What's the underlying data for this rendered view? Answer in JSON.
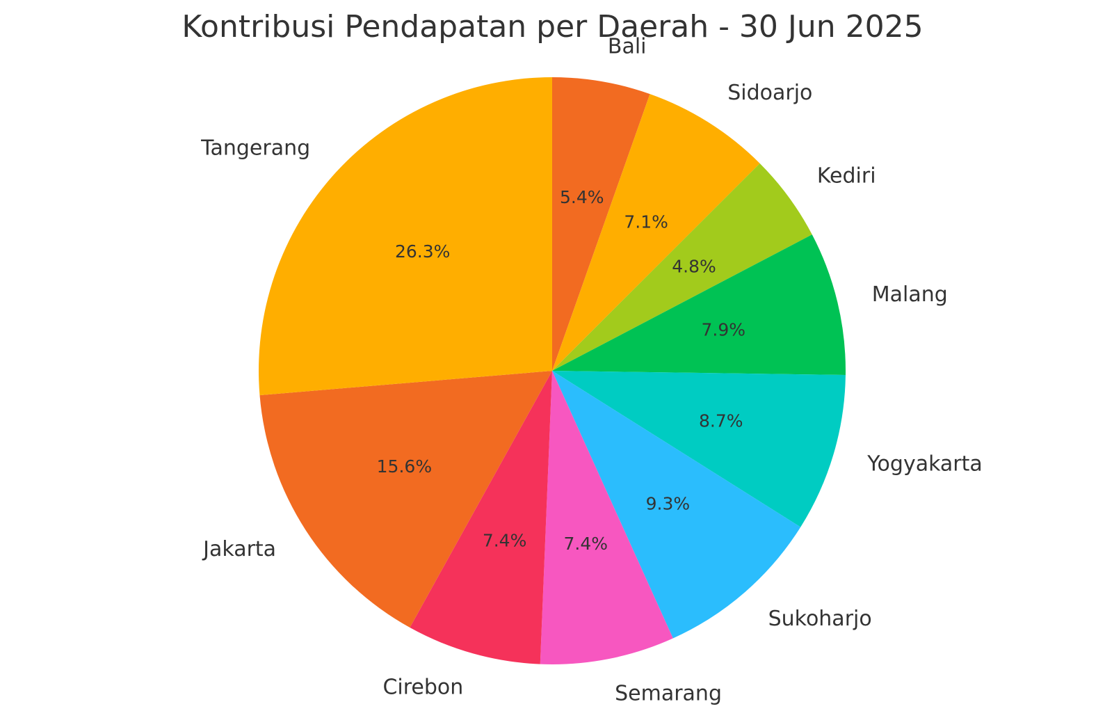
{
  "chart_data": {
    "type": "pie",
    "title": "Kontribusi Pendapatan per Daerah - 30 Jun 2025",
    "start": "top",
    "direction": "clockwise",
    "slices": [
      {
        "label": "Bali",
        "value": 5.4,
        "pct_text": "5.4%",
        "color": "#F26B21"
      },
      {
        "label": "Sidoarjo",
        "value": 7.1,
        "pct_text": "7.1%",
        "color": "#FFAE00"
      },
      {
        "label": "Kediri",
        "value": 4.8,
        "pct_text": "4.8%",
        "color": "#A2CB1C"
      },
      {
        "label": "Malang",
        "value": 7.9,
        "pct_text": "7.9%",
        "color": "#00C254"
      },
      {
        "label": "Yogyakarta",
        "value": 8.7,
        "pct_text": "8.7%",
        "color": "#00CCC2"
      },
      {
        "label": "Sukoharjo",
        "value": 9.3,
        "pct_text": "9.3%",
        "color": "#2BBDFD"
      },
      {
        "label": "Semarang",
        "value": 7.4,
        "pct_text": "7.4%",
        "color": "#F757C0"
      },
      {
        "label": "Cirebon",
        "value": 7.4,
        "pct_text": "7.4%",
        "color": "#F5325A"
      },
      {
        "label": "Jakarta",
        "value": 15.6,
        "pct_text": "15.6%",
        "color": "#F26B21"
      },
      {
        "label": "Tangerang",
        "value": 26.3,
        "pct_text": "26.3%",
        "color": "#FFAE00"
      }
    ]
  }
}
